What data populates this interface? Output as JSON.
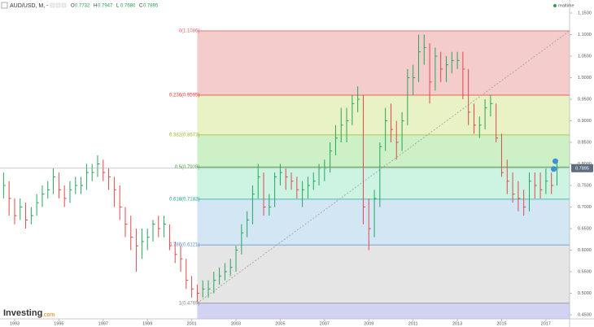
{
  "header": {
    "symbol": "AUD/USD, M, -",
    "ohlc": [
      {
        "label": "O",
        "value": "0.7732"
      },
      {
        "label": "H",
        "value": "0.7947"
      },
      {
        "label": "L",
        "value": "0.7680"
      },
      {
        "label": "C",
        "value": "0.7895"
      }
    ],
    "status": "realtime",
    "watermark": [
      "Investing",
      ".com"
    ]
  },
  "chart_data": {
    "type": "ohlc",
    "xlim": [
      1992.34,
      2018.07
    ],
    "xticks": [
      1993,
      1995,
      1997,
      1999,
      2001,
      2003,
      2005,
      2007,
      2009,
      2011,
      2013,
      2015,
      2017
    ],
    "ylim": [
      0.4406,
      1.1802
    ],
    "yticks": [
      {
        "value": 0.45,
        "label": "0.4500"
      },
      {
        "value": 0.5,
        "label": "0.5000"
      },
      {
        "value": 0.55,
        "label": "0.5500"
      },
      {
        "value": 0.6,
        "label": "0.6000"
      },
      {
        "value": 0.65,
        "label": "0.6500"
      },
      {
        "value": 0.7,
        "label": "0.7000"
      },
      {
        "value": 0.75,
        "label": "0.7500"
      },
      {
        "value": 0.8,
        "label": "0.8000"
      },
      {
        "value": 0.85,
        "label": "0.8500"
      },
      {
        "value": 0.9,
        "label": "0.9000"
      },
      {
        "value": 0.95,
        "label": "0.9500"
      },
      {
        "value": 1.0,
        "label": "1.0000"
      },
      {
        "value": 1.05,
        "label": "1.0500"
      },
      {
        "value": 1.1,
        "label": "1.1000"
      },
      {
        "value": 1.15,
        "label": "1.1500"
      }
    ],
    "up_color": "#26a65b",
    "down_color": "#e0484d",
    "x": [
      1992.5,
      1992.75,
      1993,
      1993.25,
      1993.5,
      1993.75,
      1994,
      1994.25,
      1994.5,
      1994.75,
      1995,
      1995.25,
      1995.5,
      1995.75,
      1996,
      1996.25,
      1996.5,
      1996.75,
      1997,
      1997.25,
      1997.5,
      1997.75,
      1998,
      1998.25,
      1998.5,
      1998.75,
      1999,
      1999.25,
      1999.5,
      1999.75,
      2000,
      2000.25,
      2000.5,
      2000.75,
      2001,
      2001.25,
      2001.5,
      2001.75,
      2002,
      2002.25,
      2002.5,
      2002.75,
      2003,
      2003.25,
      2003.5,
      2003.75,
      2004,
      2004.25,
      2004.5,
      2004.75,
      2005,
      2005.25,
      2005.5,
      2005.75,
      2006,
      2006.25,
      2006.5,
      2006.75,
      2007,
      2007.25,
      2007.5,
      2007.75,
      2008,
      2008.25,
      2008.5,
      2008.75,
      2009,
      2009.25,
      2009.5,
      2009.75,
      2010,
      2010.25,
      2010.5,
      2010.75,
      2011,
      2011.25,
      2011.5,
      2011.75,
      2012,
      2012.25,
      2012.5,
      2012.75,
      2013,
      2013.25,
      2013.5,
      2013.75,
      2014,
      2014.25,
      2014.5,
      2014.75,
      2015,
      2015.25,
      2015.5,
      2015.75,
      2016,
      2016.25,
      2016.5,
      2016.75,
      2017,
      2017.25,
      2017.5
    ],
    "high": [
      0.78,
      0.76,
      0.72,
      0.72,
      0.71,
      0.7,
      0.73,
      0.75,
      0.76,
      0.79,
      0.78,
      0.75,
      0.76,
      0.77,
      0.77,
      0.8,
      0.8,
      0.82,
      0.81,
      0.79,
      0.77,
      0.75,
      0.7,
      0.68,
      0.65,
      0.65,
      0.65,
      0.67,
      0.68,
      0.68,
      0.66,
      0.62,
      0.61,
      0.58,
      0.54,
      0.52,
      0.53,
      0.53,
      0.55,
      0.56,
      0.57,
      0.58,
      0.61,
      0.66,
      0.69,
      0.75,
      0.8,
      0.78,
      0.73,
      0.78,
      0.8,
      0.79,
      0.78,
      0.77,
      0.76,
      0.77,
      0.78,
      0.8,
      0.81,
      0.85,
      0.89,
      0.93,
      0.93,
      0.96,
      0.98,
      0.96,
      0.72,
      0.74,
      0.85,
      0.93,
      0.94,
      0.9,
      0.92,
      1.02,
      1.03,
      1.1,
      1.1,
      1.08,
      1.07,
      1.06,
      1.05,
      1.06,
      1.06,
      1.06,
      1.02,
      0.94,
      0.91,
      0.95,
      0.96,
      0.94,
      0.87,
      0.81,
      0.78,
      0.76,
      0.74,
      0.78,
      0.78,
      0.78,
      0.79,
      0.78,
      0.81
    ],
    "low": [
      0.72,
      0.68,
      0.66,
      0.67,
      0.65,
      0.66,
      0.68,
      0.7,
      0.72,
      0.73,
      0.72,
      0.7,
      0.71,
      0.73,
      0.73,
      0.74,
      0.76,
      0.77,
      0.76,
      0.74,
      0.7,
      0.67,
      0.63,
      0.6,
      0.55,
      0.58,
      0.6,
      0.62,
      0.63,
      0.63,
      0.6,
      0.57,
      0.55,
      0.51,
      0.49,
      0.48,
      0.49,
      0.49,
      0.5,
      0.52,
      0.53,
      0.54,
      0.55,
      0.59,
      0.63,
      0.66,
      0.72,
      0.68,
      0.68,
      0.7,
      0.75,
      0.74,
      0.74,
      0.72,
      0.7,
      0.72,
      0.74,
      0.75,
      0.76,
      0.78,
      0.82,
      0.85,
      0.85,
      0.89,
      0.92,
      0.66,
      0.6,
      0.63,
      0.7,
      0.83,
      0.85,
      0.81,
      0.83,
      0.89,
      0.96,
      0.99,
      1.03,
      0.94,
      0.97,
      0.99,
      0.99,
      1.01,
      1.02,
      0.95,
      0.89,
      0.87,
      0.86,
      0.88,
      0.91,
      0.85,
      0.77,
      0.73,
      0.71,
      0.69,
      0.68,
      0.69,
      0.72,
      0.72,
      0.73,
      0.73,
      0.75
    ],
    "close": [
      0.75,
      0.72,
      0.68,
      0.7,
      0.67,
      0.68,
      0.71,
      0.73,
      0.74,
      0.77,
      0.74,
      0.72,
      0.74,
      0.75,
      0.75,
      0.78,
      0.78,
      0.8,
      0.78,
      0.77,
      0.74,
      0.7,
      0.66,
      0.63,
      0.61,
      0.62,
      0.63,
      0.66,
      0.65,
      0.66,
      0.61,
      0.59,
      0.58,
      0.53,
      0.51,
      0.5,
      0.51,
      0.51,
      0.53,
      0.54,
      0.55,
      0.56,
      0.6,
      0.64,
      0.67,
      0.73,
      0.77,
      0.7,
      0.7,
      0.77,
      0.78,
      0.77,
      0.76,
      0.74,
      0.74,
      0.75,
      0.76,
      0.79,
      0.79,
      0.83,
      0.86,
      0.89,
      0.9,
      0.94,
      0.95,
      0.7,
      0.65,
      0.72,
      0.84,
      0.9,
      0.88,
      0.85,
      0.9,
      1.0,
      1.0,
      1.06,
      1.07,
      0.99,
      1.05,
      1.02,
      1.03,
      1.04,
      1.04,
      1.02,
      0.92,
      0.89,
      0.89,
      0.93,
      0.94,
      0.86,
      0.78,
      0.76,
      0.73,
      0.72,
      0.7,
      0.76,
      0.75,
      0.74,
      0.76,
      0.75,
      0.79
    ],
    "fib": {
      "x": [
        2001.25,
        2018.07
      ],
      "levels": [
        {
          "label": "0(1.1086)",
          "value": 1.1086,
          "color": "#e06666",
          "band_color": "#f4cccc"
        },
        {
          "label": "0.236(0.9595)",
          "value": 0.9595,
          "color": "#e53935",
          "band_color": "#e9f2c4"
        },
        {
          "label": "0.382(0.8673)",
          "value": 0.8673,
          "color": "#9bbb2e",
          "band_color": "#cdf0c6"
        },
        {
          "label": "0.5(0.7928)",
          "value": 0.7928,
          "color": "#43a047",
          "band_color": "#cdf3e3"
        },
        {
          "label": "0.618(0.7182)",
          "value": 0.7182,
          "color": "#26a69a",
          "band_color": "#d3e6f4"
        },
        {
          "label": "0.786(0.6121)",
          "value": 0.6121,
          "color": "#5b8fd0",
          "band_color": "#e5e5e5"
        },
        {
          "label": "1(0.4769)",
          "value": 0.4769,
          "color": "#888888",
          "band_color": "#d2d2f2"
        }
      ]
    }
  }
}
